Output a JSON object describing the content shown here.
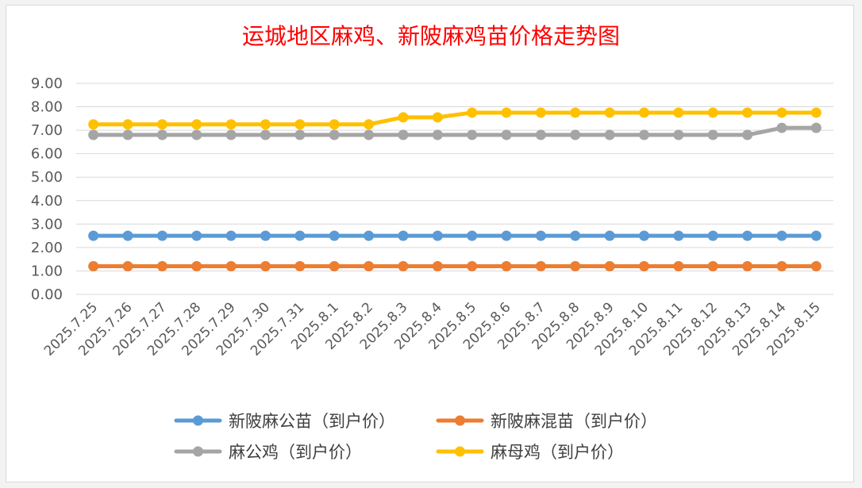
{
  "chart_data": {
    "type": "line",
    "title": "运城地区麻鸡、新陂麻鸡苗价格走势图",
    "xlabel": "",
    "ylabel": "",
    "ylim": [
      0,
      9
    ],
    "yticks": [
      "0.00",
      "1.00",
      "2.00",
      "3.00",
      "4.00",
      "5.00",
      "6.00",
      "7.00",
      "8.00",
      "9.00"
    ],
    "grid": true,
    "legend_position": "bottom",
    "categories": [
      "2025.7.25",
      "2025.7.26",
      "2025.7.27",
      "2025.7.28",
      "2025.7.29",
      "2025.7.30",
      "2025.7.31",
      "2025.8.1",
      "2025.8.2",
      "2025.8.3",
      "2025.8.4",
      "2025.8.5",
      "2025.8.6",
      "2025.8.7",
      "2025.8.8",
      "2025.8.9",
      "2025.8.10",
      "2025.8.11",
      "2025.8.12",
      "2025.8.13",
      "2025.8.14",
      "2025.8.15"
    ],
    "series": [
      {
        "name": "新陂麻公苗（到户价）",
        "color": "#5b9bd5",
        "values": [
          2.5,
          2.5,
          2.5,
          2.5,
          2.5,
          2.5,
          2.5,
          2.5,
          2.5,
          2.5,
          2.5,
          2.5,
          2.5,
          2.5,
          2.5,
          2.5,
          2.5,
          2.5,
          2.5,
          2.5,
          2.5,
          2.5
        ]
      },
      {
        "name": "新陂麻混苗（到户价）",
        "color": "#ed7d31",
        "values": [
          1.2,
          1.2,
          1.2,
          1.2,
          1.2,
          1.2,
          1.2,
          1.2,
          1.2,
          1.2,
          1.2,
          1.2,
          1.2,
          1.2,
          1.2,
          1.2,
          1.2,
          1.2,
          1.2,
          1.2,
          1.2,
          1.2
        ]
      },
      {
        "name": "麻公鸡（到户价）",
        "color": "#a5a5a5",
        "values": [
          6.8,
          6.8,
          6.8,
          6.8,
          6.8,
          6.8,
          6.8,
          6.8,
          6.8,
          6.8,
          6.8,
          6.8,
          6.8,
          6.8,
          6.8,
          6.8,
          6.8,
          6.8,
          6.8,
          6.8,
          7.1,
          7.1
        ]
      },
      {
        "name": "麻母鸡（到户价）",
        "color": "#ffc000",
        "values": [
          7.25,
          7.25,
          7.25,
          7.25,
          7.25,
          7.25,
          7.25,
          7.25,
          7.25,
          7.55,
          7.55,
          7.75,
          7.75,
          7.75,
          7.75,
          7.75,
          7.75,
          7.75,
          7.75,
          7.75,
          7.75,
          7.75
        ]
      }
    ]
  }
}
